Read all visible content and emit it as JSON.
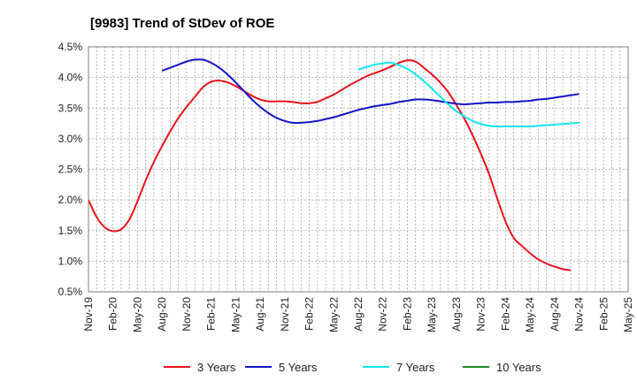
{
  "chart_data": {
    "type": "line",
    "title": "[9983]  Trend of StDev of ROE",
    "xlabel": "",
    "ylabel": "",
    "ylim": [
      0.5,
      4.5
    ],
    "y_ticks": [
      "0.5%",
      "1.0%",
      "1.5%",
      "2.0%",
      "2.5%",
      "3.0%",
      "3.5%",
      "4.0%",
      "4.5%"
    ],
    "x_ticks": [
      "Nov-19",
      "Feb-20",
      "May-20",
      "Aug-20",
      "Nov-20",
      "Feb-21",
      "May-21",
      "Aug-21",
      "Nov-21",
      "Feb-22",
      "May-22",
      "Aug-22",
      "Nov-22",
      "Feb-23",
      "May-23",
      "Aug-23",
      "Nov-23",
      "Feb-24",
      "May-24",
      "Aug-24",
      "Nov-24",
      "Feb-25",
      "May-25"
    ],
    "grid": true,
    "legend_position": "bottom",
    "series": [
      {
        "name": "3 Years",
        "color": "#e8141e",
        "points": [
          [
            "Nov-19",
            2.0
          ],
          [
            "Dec-19",
            1.72
          ],
          [
            "Jan-20",
            1.55
          ],
          [
            "Feb-20",
            1.49
          ],
          [
            "Mar-20",
            1.52
          ],
          [
            "Apr-20",
            1.68
          ],
          [
            "May-20",
            1.98
          ],
          [
            "Jun-20",
            2.32
          ],
          [
            "Jul-20",
            2.62
          ],
          [
            "Aug-20",
            2.88
          ],
          [
            "Sep-20",
            3.12
          ],
          [
            "Oct-20",
            3.34
          ],
          [
            "Nov-20",
            3.52
          ],
          [
            "Dec-20",
            3.68
          ],
          [
            "Jan-21",
            3.84
          ],
          [
            "Feb-21",
            3.93
          ],
          [
            "Mar-21",
            3.95
          ],
          [
            "Apr-21",
            3.92
          ],
          [
            "May-21",
            3.86
          ],
          [
            "Jun-21",
            3.78
          ],
          [
            "Jul-21",
            3.7
          ],
          [
            "Aug-21",
            3.64
          ],
          [
            "Sep-21",
            3.61
          ],
          [
            "Oct-21",
            3.61
          ],
          [
            "Nov-21",
            3.61
          ],
          [
            "Dec-21",
            3.6
          ],
          [
            "Jan-22",
            3.58
          ],
          [
            "Feb-22",
            3.58
          ],
          [
            "Mar-22",
            3.6
          ],
          [
            "Apr-22",
            3.66
          ],
          [
            "May-22",
            3.72
          ],
          [
            "Jun-22",
            3.8
          ],
          [
            "Jul-22",
            3.88
          ],
          [
            "Aug-22",
            3.95
          ],
          [
            "Sep-22",
            4.02
          ],
          [
            "Oct-22",
            4.07
          ],
          [
            "Nov-22",
            4.12
          ],
          [
            "Dec-22",
            4.18
          ],
          [
            "Jan-23",
            4.24
          ],
          [
            "Feb-23",
            4.28
          ],
          [
            "Mar-23",
            4.26
          ],
          [
            "Apr-23",
            4.16
          ],
          [
            "May-23",
            4.05
          ],
          [
            "Jun-23",
            3.92
          ],
          [
            "Jul-23",
            3.76
          ],
          [
            "Aug-23",
            3.55
          ],
          [
            "Sep-23",
            3.32
          ],
          [
            "Oct-23",
            3.05
          ],
          [
            "Nov-23",
            2.75
          ],
          [
            "Dec-23",
            2.42
          ],
          [
            "Jan-24",
            2.02
          ],
          [
            "Feb-24",
            1.65
          ],
          [
            "Mar-24",
            1.38
          ],
          [
            "Apr-24",
            1.25
          ],
          [
            "May-24",
            1.13
          ],
          [
            "Jun-24",
            1.03
          ],
          [
            "Jul-24",
            0.96
          ],
          [
            "Aug-24",
            0.91
          ],
          [
            "Sep-24",
            0.87
          ],
          [
            "Oct-24",
            0.85
          ]
        ]
      },
      {
        "name": "5 Years",
        "color": "#1414c8",
        "points": [
          [
            "Aug-20",
            4.11
          ],
          [
            "Sep-20",
            4.16
          ],
          [
            "Oct-20",
            4.21
          ],
          [
            "Nov-20",
            4.26
          ],
          [
            "Dec-20",
            4.29
          ],
          [
            "Jan-21",
            4.29
          ],
          [
            "Feb-21",
            4.24
          ],
          [
            "Mar-21",
            4.16
          ],
          [
            "Apr-21",
            4.05
          ],
          [
            "May-21",
            3.92
          ],
          [
            "Jun-21",
            3.78
          ],
          [
            "Jul-21",
            3.64
          ],
          [
            "Aug-21",
            3.52
          ],
          [
            "Sep-21",
            3.42
          ],
          [
            "Oct-21",
            3.34
          ],
          [
            "Nov-21",
            3.29
          ],
          [
            "Dec-21",
            3.26
          ],
          [
            "Jan-22",
            3.26
          ],
          [
            "Feb-22",
            3.27
          ],
          [
            "Mar-22",
            3.29
          ],
          [
            "Apr-22",
            3.32
          ],
          [
            "May-22",
            3.35
          ],
          [
            "Jun-22",
            3.39
          ],
          [
            "Jul-22",
            3.43
          ],
          [
            "Aug-22",
            3.47
          ],
          [
            "Sep-22",
            3.5
          ],
          [
            "Oct-22",
            3.53
          ],
          [
            "Nov-22",
            3.55
          ],
          [
            "Dec-22",
            3.57
          ],
          [
            "Jan-23",
            3.6
          ],
          [
            "Feb-23",
            3.62
          ],
          [
            "Mar-23",
            3.64
          ],
          [
            "Apr-23",
            3.64
          ],
          [
            "May-23",
            3.63
          ],
          [
            "Jun-23",
            3.61
          ],
          [
            "Jul-23",
            3.59
          ],
          [
            "Aug-23",
            3.57
          ],
          [
            "Sep-23",
            3.56
          ],
          [
            "Oct-23",
            3.57
          ],
          [
            "Nov-23",
            3.58
          ],
          [
            "Dec-23",
            3.59
          ],
          [
            "Jan-24",
            3.59
          ],
          [
            "Feb-24",
            3.6
          ],
          [
            "Mar-24",
            3.6
          ],
          [
            "Apr-24",
            3.61
          ],
          [
            "May-24",
            3.62
          ],
          [
            "Jun-24",
            3.64
          ],
          [
            "Jul-24",
            3.65
          ],
          [
            "Aug-24",
            3.67
          ],
          [
            "Sep-24",
            3.69
          ],
          [
            "Oct-24",
            3.71
          ],
          [
            "Nov-24",
            3.73
          ]
        ]
      },
      {
        "name": "7 Years",
        "color": "#14e6f0",
        "points": [
          [
            "Aug-22",
            4.13
          ],
          [
            "Sep-22",
            4.17
          ],
          [
            "Oct-22",
            4.21
          ],
          [
            "Nov-22",
            4.23
          ],
          [
            "Dec-22",
            4.24
          ],
          [
            "Jan-23",
            4.2
          ],
          [
            "Feb-23",
            4.14
          ],
          [
            "Mar-23",
            4.05
          ],
          [
            "Apr-23",
            3.94
          ],
          [
            "May-23",
            3.82
          ],
          [
            "Jun-23",
            3.69
          ],
          [
            "Jul-23",
            3.56
          ],
          [
            "Aug-23",
            3.45
          ],
          [
            "Sep-23",
            3.36
          ],
          [
            "Oct-23",
            3.29
          ],
          [
            "Nov-23",
            3.24
          ],
          [
            "Dec-23",
            3.21
          ],
          [
            "Jan-24",
            3.2
          ],
          [
            "Feb-24",
            3.2
          ],
          [
            "Mar-24",
            3.2
          ],
          [
            "Apr-24",
            3.2
          ],
          [
            "May-24",
            3.2
          ],
          [
            "Jun-24",
            3.21
          ],
          [
            "Jul-24",
            3.22
          ],
          [
            "Aug-24",
            3.23
          ],
          [
            "Sep-24",
            3.24
          ],
          [
            "Oct-24",
            3.25
          ],
          [
            "Nov-24",
            3.26
          ]
        ]
      },
      {
        "name": "10 Years",
        "color": "#1a8a1a",
        "points": []
      }
    ]
  }
}
